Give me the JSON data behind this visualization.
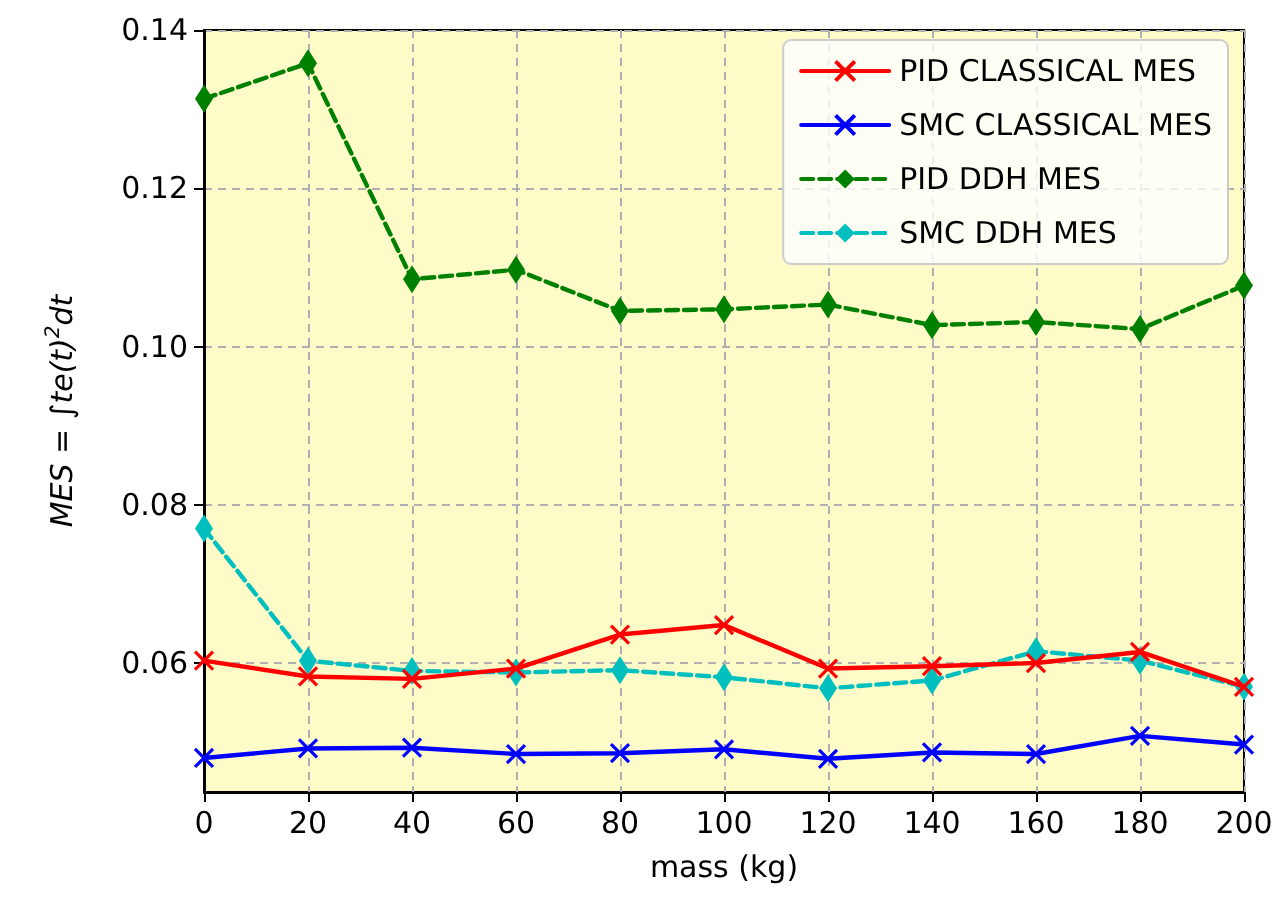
{
  "chart_data": {
    "type": "line",
    "xlabel": "mass (kg)",
    "ylabel": "MES = ∫te(t)$^{2}$dt",
    "x": [
      0,
      20,
      40,
      60,
      80,
      100,
      120,
      140,
      160,
      180,
      200
    ],
    "xlim": [
      0,
      200
    ],
    "xticks": [
      0,
      20,
      40,
      60,
      80,
      100,
      120,
      140,
      160,
      180,
      200
    ],
    "ylim": [
      0.0437,
      0.14
    ],
    "yticks": [
      0.06,
      0.08,
      {
        "value": 0.1,
        "label": "0.10"
      },
      0.12,
      0.14
    ],
    "grid": true,
    "legend": "top right",
    "series": [
      {
        "name": "PID CLASSICAL MES",
        "color": "#ff0000",
        "marker": "cross",
        "line_style": "solid",
        "values": [
          0.0603,
          0.0583,
          0.058,
          0.0593,
          0.0636,
          0.0648,
          0.0593,
          0.0596,
          0.06,
          0.0614,
          0.057
        ]
      },
      {
        "name": "SMC CLASSICAL MES",
        "color": "#0000ff",
        "marker": "cross",
        "line_style": "solid",
        "values": [
          0.048,
          0.0492,
          0.0493,
          0.0485,
          0.0486,
          0.0491,
          0.0479,
          0.0487,
          0.0485,
          0.0508,
          0.0497
        ]
      },
      {
        "name": "PID DDH MES",
        "color": "#008000",
        "marker": "diamond",
        "line_style": "dashed",
        "values": [
          0.1313,
          0.1358,
          0.1085,
          0.1097,
          0.1045,
          0.1047,
          0.1053,
          0.1027,
          0.1031,
          0.1022,
          0.1077
        ]
      },
      {
        "name": "SMC DDH MES",
        "color": "#00bfbf",
        "marker": "diamond",
        "line_style": "dashed",
        "values": [
          0.077,
          0.0603,
          0.059,
          0.0588,
          0.0591,
          0.0582,
          0.0568,
          0.0578,
          0.0615,
          0.0603,
          0.057
        ]
      }
    ]
  }
}
